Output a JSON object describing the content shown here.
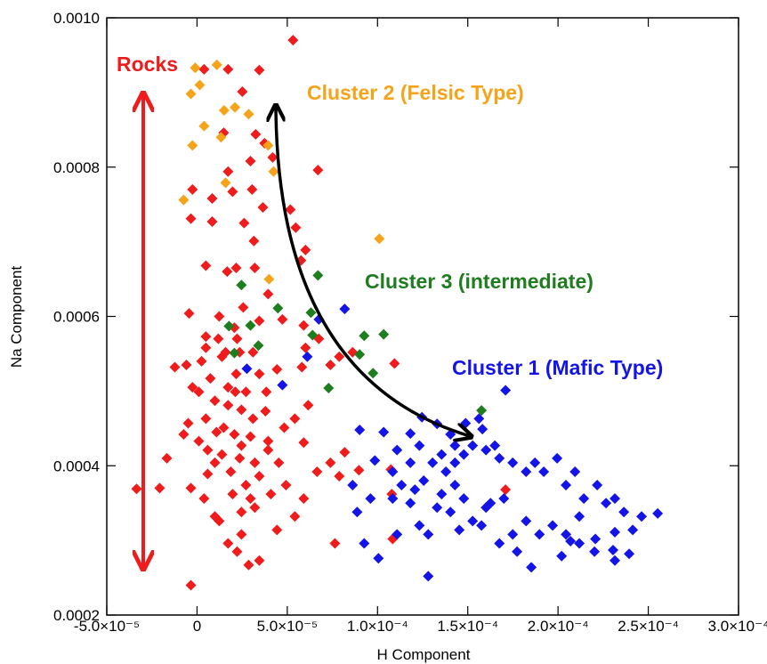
{
  "chart_data": {
    "type": "scatter",
    "xlabel": "H Component",
    "ylabel": "Na Component",
    "xlim": [
      -5e-05,
      0.0003
    ],
    "ylim": [
      0.0002,
      0.001
    ],
    "xticks": [
      {
        "value": -5e-05,
        "label": "-5.0×10⁻⁵"
      },
      0,
      {
        "value": 5e-05,
        "label": "5.0×10⁻⁵"
      },
      {
        "value": 0.0001,
        "label": "1.0×10⁻⁴"
      },
      {
        "value": 0.00015,
        "label": "1.5×10⁻⁴"
      },
      {
        "value": 0.0002,
        "label": "2.0×10⁻⁴"
      },
      {
        "value": 0.00025,
        "label": "2.5×10⁻⁴"
      },
      {
        "value": 0.0003,
        "label": "3.0×10⁻⁴"
      }
    ],
    "yticks": [
      0.0002,
      0.0004,
      0.0006,
      0.0008,
      {
        "value": 0.001,
        "label": "0.0010"
      }
    ],
    "series": [
      {
        "name": "Rocks",
        "color": "#ee1c1c",
        "x": [
          5.32e-05,
          3.9e-06,
          1.72e-05,
          3.45e-05,
          2.51e-05,
          1.48e-05,
          3.25e-05,
          4.19e-05,
          6.7e-05,
          3.74e-05,
          2.96e-05,
          -2.5e-06,
          1.72e-05,
          8.4e-06,
          1.97e-05,
          3.05e-05,
          8.4e-06,
          2.61e-05,
          3.65e-05,
          5.17e-05,
          5.47e-05,
          3.15e-05,
          2.17e-05,
          4.9e-06,
          1.67e-05,
          6.01e-05,
          3.2e-05,
          3.94e-05,
          5.76e-05,
          2.56e-05,
          -4.4e-06,
          1.23e-05,
          4.9e-06,
          2.07e-05,
          3.45e-05,
          4.73e-05,
          5.91e-05,
          6.75e-05,
          6.01e-05,
          -5.9e-06,
          -1.23e-05,
          2.5e-06,
          1.38e-05,
          2.17e-05,
          3.45e-05,
          4.43e-05,
          5.81e-05,
          7.39e-05,
          7.88e-05,
          8.62e-05,
          0.0001094,
          7.4e-06,
          -2.5e-06,
          1.72e-05,
          2.71e-05,
          3.84e-05,
          9.9e-06,
          1.72e-05,
          2.46e-05,
          3.1e-05,
          4.9e-06,
          -4.9e-06,
          1.08e-05,
          2.07e-05,
          2.96e-05,
          3.94e-05,
          4.83e-05,
          5.42e-05,
          6.16e-05,
          1e-06,
          5.9e-06,
          1.38e-05,
          2.36e-05,
          3.2e-05,
          3.94e-05,
          4.53e-05,
          5.91e-05,
          6.65e-05,
          7.39e-05,
          8.18e-05,
          8.97e-05,
          9.9e-06,
          1.87e-05,
          2.71e-05,
          3.45e-05,
          4.09e-05,
          4.93e-05,
          5.91e-05,
          7.88e-05,
          0.0001074,
          -3.4e-06,
          3.9e-06,
          1.97e-05,
          2.46e-05,
          1.23e-05,
          3.2e-05,
          5.42e-05,
          7.64e-05,
          2.46e-05,
          2.22e-05,
          3.45e-05,
          4.43e-05,
          1.72e-05,
          9.9e-06,
          2.96e-05,
          2.12e-05,
          3.79e-05,
          -7.4e-06,
          -1.67e-05,
          -2.07e-05,
          -3.35e-05,
          2.22e-05,
          1.18e-05,
          1.58e-05,
          2.36e-05,
          3.1e-05,
          4.9e-06,
          1e-06,
          5.9e-06,
          1.48e-05,
          2.46e-05,
          -3.4e-06,
          0.0001084,
          -3.4e-06,
          2.86e-05,
          0.0001079,
          0.0001709
        ],
        "values": [
          0.00097,
          0.000931,
          0.000931,
          0.00093,
          0.000901,
          0.000846,
          0.000844,
          0.000813,
          0.000796,
          0.000832,
          0.000808,
          0.00077,
          0.000794,
          0.000758,
          0.000767,
          0.00077,
          0.000727,
          0.000725,
          0.000746,
          0.000743,
          0.000719,
          0.000701,
          0.000665,
          0.000668,
          0.00066,
          0.000689,
          0.000665,
          0.00063,
          0.000675,
          0.000612,
          0.000604,
          0.0006,
          0.000573,
          0.000585,
          0.000594,
          0.000596,
          0.000588,
          0.00057,
          0.000558,
          0.000535,
          0.000532,
          0.00054,
          0.000546,
          0.000523,
          0.000523,
          0.000529,
          0.000532,
          0.000535,
          0.000546,
          0.000552,
          0.000537,
          0.000517,
          0.000505,
          0.000505,
          0.000499,
          0.000499,
          0.000487,
          0.000481,
          0.000475,
          0.000463,
          0.000463,
          0.000457,
          0.000445,
          0.000442,
          0.000439,
          0.000433,
          0.000451,
          0.000463,
          0.000481,
          0.000433,
          0.000421,
          0.000415,
          0.00041,
          0.000404,
          0.000421,
          0.000404,
          0.000431,
          0.000392,
          0.000404,
          0.000418,
          0.000394,
          0.000404,
          0.000392,
          0.000374,
          0.000386,
          0.000362,
          0.000374,
          0.000356,
          0.000386,
          0.000395,
          0.00037,
          0.000356,
          0.000362,
          0.000338,
          0.000326,
          0.000344,
          0.000332,
          0.000296,
          0.000308,
          0.000285,
          0.000273,
          0.000314,
          0.000296,
          0.000332,
          0.000356,
          0.000499,
          0.000473,
          0.000442,
          0.00041,
          0.00037,
          0.000369,
          0.00057,
          0.00057,
          0.000552,
          0.000552,
          0.000552,
          0.000558,
          0.000499,
          0.000389,
          0.000451,
          0.000427,
          0.000731,
          0.000302,
          0.00024,
          0.000267,
          0.000362,
          0.000368
        ]
      },
      {
        "name": "Cluster 2 (Felsic Type)",
        "color": "#f5a31a",
        "x": [
          -1e-06,
          1.1e-05,
          -3.4e-06,
          1.5e-06,
          1.5e-05,
          2.1e-05,
          3.9e-06,
          -2.5e-06,
          1.33e-05,
          2.86e-05,
          3.94e-05,
          4.24e-05,
          1.58e-05,
          -7.4e-06,
          3.99e-05,
          0.000101
        ],
        "values": [
          0.000933,
          0.000937,
          0.000898,
          0.00091,
          0.000876,
          0.00088,
          0.000855,
          0.000829,
          0.00084,
          0.000871,
          0.000829,
          0.000794,
          0.000779,
          0.000756,
          0.00065,
          0.000704
        ]
      },
      {
        "name": "Cluster 3 (intermediate)",
        "color": "#1e7d1e",
        "x": [
          2.46e-05,
          6.7e-05,
          4.48e-05,
          6.31e-05,
          2.96e-05,
          6.4e-05,
          3.4e-05,
          1.77e-05,
          9.26e-05,
          0.0001034,
          9.01e-05,
          9.75e-05,
          7.29e-05,
          0.0001576,
          2.07e-05
        ],
        "values": [
          0.000642,
          0.000655,
          0.000611,
          0.000605,
          0.000588,
          0.000575,
          0.000561,
          0.000587,
          0.000574,
          0.000576,
          0.000549,
          0.000524,
          0.000504,
          0.000474,
          0.000551
        ]
      },
      {
        "name": "Cluster 1 (Mafic Type)",
        "color": "#1414e6",
        "x": [
          8.18e-05,
          6.75e-05,
          6.11e-05,
          4.73e-05,
          2.76e-05,
          9.01e-05,
          0.0001034,
          0.0001182,
          0.0001246,
          0.000133,
          0.0001404,
          0.0001488,
          0.0001562,
          0.0001709,
          0.0001581,
          0.0001429,
          0.0001232,
          0.0001108,
          9.85e-05,
          8.62e-05,
          8.87e-05,
          9.61e-05,
          0.0001084,
          0.0001133,
          0.0001182,
          0.0001256,
          0.0001305,
          0.0001355,
          0.0001379,
          0.0001429,
          0.0001478,
          0.0001527,
          0.0001601,
          0.000165,
          0.0001675,
          0.0001749,
          0.0001823,
          0.0001872,
          0.0001921,
          0.0001995,
          0.0002044,
          0.0002094,
          0.0002143,
          0.0002217,
          0.0002266,
          0.0002315,
          0.0002365,
          0.0002463,
          0.0002552,
          0.0002414,
          0.0002315,
          0.0002207,
          0.0002118,
          0.0002044,
          0.000197,
          0.0001897,
          0.0001823,
          0.0001749,
          0.0001773,
          0.0001852,
          0.0001675,
          0.0001601,
          0.0001527,
          0.0001478,
          0.0001404,
          0.000133,
          0.0001232,
          0.0001207,
          0.0001281,
          0.0001084,
          9.26e-05,
          0.0001005,
          0.0001281,
          0.0001453,
          0.0001576,
          0.000202,
          0.0002118,
          0.0002202,
          0.0002305,
          0.0002394,
          0.0001626,
          0.00017,
          0.0001429,
          0.0001355,
          0.0001182,
          0.0001108,
          0.0002315,
          0.0002069
        ],
        "values": [
          0.00061,
          0.000596,
          0.000546,
          0.000508,
          0.00053,
          0.000448,
          0.000445,
          0.000443,
          0.000465,
          0.000456,
          0.000442,
          0.000457,
          0.000463,
          0.000501,
          0.000449,
          0.000427,
          0.000427,
          0.000421,
          0.000407,
          0.000374,
          0.000338,
          0.000356,
          0.000392,
          0.000374,
          0.000404,
          0.00038,
          0.000404,
          0.000415,
          0.000392,
          0.000404,
          0.000415,
          0.000427,
          0.000421,
          0.000427,
          0.00041,
          0.000404,
          0.000392,
          0.000404,
          0.000392,
          0.00041,
          0.000374,
          0.000392,
          0.000356,
          0.000374,
          0.00035,
          0.000356,
          0.000338,
          0.000332,
          0.000336,
          0.000314,
          0.000311,
          0.000302,
          0.000332,
          0.000308,
          0.00032,
          0.000308,
          0.000326,
          0.000308,
          0.000285,
          0.000264,
          0.000296,
          0.000344,
          0.000326,
          0.000356,
          0.000338,
          0.000344,
          0.00032,
          0.000368,
          0.000308,
          0.000356,
          0.000296,
          0.000276,
          0.000252,
          0.000314,
          0.00032,
          0.000279,
          0.000296,
          0.000285,
          0.000287,
          0.000282,
          0.00035,
          0.000356,
          0.000374,
          0.000362,
          0.00035,
          0.000308,
          0.000273,
          0.000299
        ]
      }
    ]
  }
}
